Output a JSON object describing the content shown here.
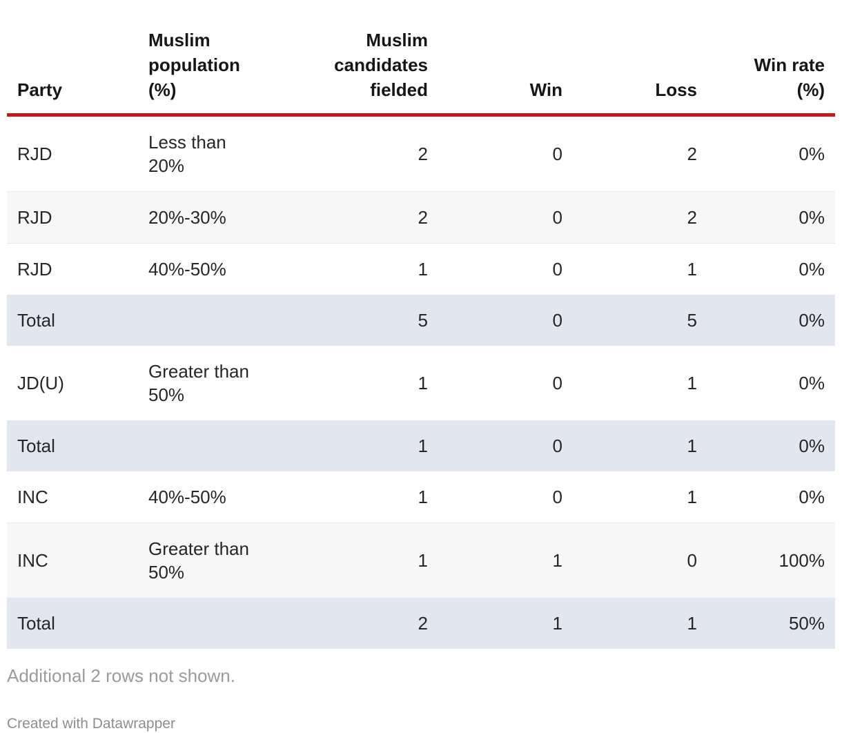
{
  "theme": {
    "accent_red": "#c2191f",
    "total_row_bg": "#e2e6f1",
    "alt_row_bg": "#f7f7f7",
    "body_text": "#262626",
    "muted_text": "#9b9b9b"
  },
  "chart_data": {
    "type": "table",
    "columns": [
      {
        "id": "party",
        "label": "Party",
        "align": "left"
      },
      {
        "id": "population",
        "label": "Muslim\npopulation\n(%)",
        "align": "left"
      },
      {
        "id": "candidates",
        "label": "Muslim\ncandidates\nfielded",
        "align": "right"
      },
      {
        "id": "win",
        "label": "Win",
        "align": "right"
      },
      {
        "id": "loss",
        "label": "Loss",
        "align": "right"
      },
      {
        "id": "win_rate",
        "label": "Win rate\n(%)",
        "align": "right"
      }
    ],
    "rows": [
      {
        "party": "RJD",
        "population": "Less than\n20%",
        "candidates": "2",
        "win": "0",
        "loss": "2",
        "win_rate": "0%",
        "variant": "plain"
      },
      {
        "party": "RJD",
        "population": "20%-30%",
        "candidates": "2",
        "win": "0",
        "loss": "2",
        "win_rate": "0%",
        "variant": "alt"
      },
      {
        "party": "RJD",
        "population": "40%-50%",
        "candidates": "1",
        "win": "0",
        "loss": "1",
        "win_rate": "0%",
        "variant": "plain"
      },
      {
        "party": "Total",
        "population": "",
        "candidates": "5",
        "win": "0",
        "loss": "5",
        "win_rate": "0%",
        "variant": "total"
      },
      {
        "party": "JD(U)",
        "population": "Greater than\n50%",
        "candidates": "1",
        "win": "0",
        "loss": "1",
        "win_rate": "0%",
        "variant": "plain"
      },
      {
        "party": "Total",
        "population": "",
        "candidates": "1",
        "win": "0",
        "loss": "1",
        "win_rate": "0%",
        "variant": "total"
      },
      {
        "party": "INC",
        "population": "40%-50%",
        "candidates": "1",
        "win": "0",
        "loss": "1",
        "win_rate": "0%",
        "variant": "plain"
      },
      {
        "party": "INC",
        "population": "Greater than\n50%",
        "candidates": "1",
        "win": "1",
        "loss": "0",
        "win_rate": "100%",
        "variant": "alt"
      },
      {
        "party": "Total",
        "population": "",
        "candidates": "2",
        "win": "1",
        "loss": "1",
        "win_rate": "50%",
        "variant": "total"
      }
    ],
    "footnote": "Additional 2 rows not shown.",
    "credit": "Created with Datawrapper"
  }
}
